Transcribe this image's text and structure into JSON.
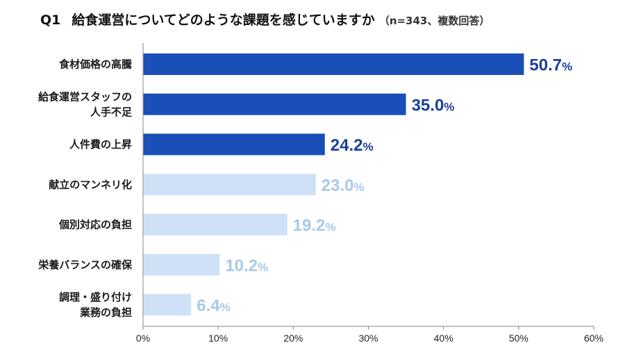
{
  "title": {
    "number": "Q1",
    "question": "給食運営についてどのような課題を感じていますか",
    "note": "（n=343、複数回答）"
  },
  "colors": {
    "highlight": "#1a4fb8",
    "highlight_text": "#1a3f99",
    "normal": "#cfe1f7",
    "normal_text": "#a9c8ee",
    "axis": "#9a9a9a"
  },
  "chart_data": {
    "type": "bar",
    "orientation": "horizontal",
    "categories": [
      [
        "食材価格の高騰"
      ],
      [
        "給食運営スタッフの",
        "人手不足"
      ],
      [
        "人件費の上昇"
      ],
      [
        "献立のマンネリ化"
      ],
      [
        "個別対応の負担"
      ],
      [
        "栄養バランスの確保"
      ],
      [
        "調理・盛り付け",
        "業務の負担"
      ]
    ],
    "values": [
      50.7,
      35.0,
      24.2,
      23.0,
      19.2,
      10.2,
      6.4
    ],
    "value_labels": [
      "50.7",
      "35.0",
      "24.2",
      "23.0",
      "19.2",
      "10.2",
      "6.4"
    ],
    "value_unit": "%",
    "highlighted": [
      true,
      true,
      true,
      false,
      false,
      false,
      false
    ],
    "xlim": [
      0,
      60
    ],
    "xticks": [
      "0%",
      "10%",
      "20%",
      "30%",
      "40%",
      "50%",
      "60%"
    ],
    "grid": false,
    "legend": false
  }
}
